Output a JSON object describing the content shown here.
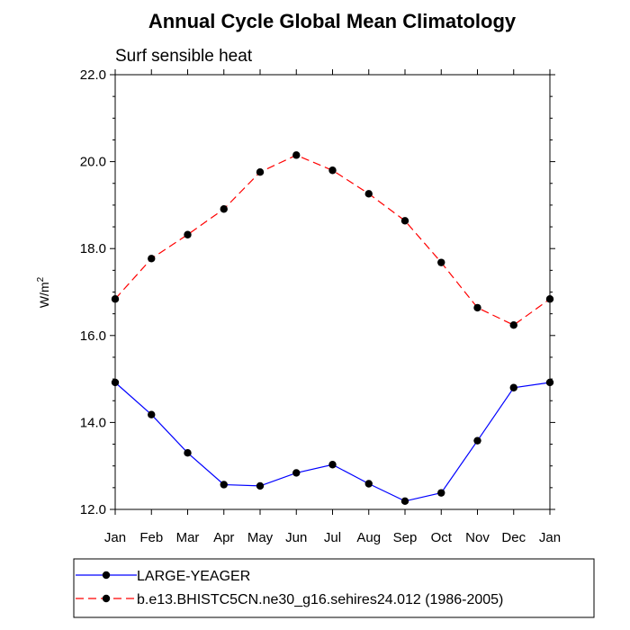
{
  "chart_data": {
    "type": "line",
    "title": "Annual Cycle Global Mean Climatology",
    "subtitle": "Surf sensible heat",
    "xlabel": "",
    "ylabel": "W/m",
    "ylabel_sup": "2",
    "categories": [
      "Jan",
      "Feb",
      "Mar",
      "Apr",
      "May",
      "Jun",
      "Jul",
      "Aug",
      "Sep",
      "Oct",
      "Nov",
      "Dec",
      "Jan"
    ],
    "ylim": [
      12.0,
      22.0
    ],
    "yticks": [
      12.0,
      14.0,
      16.0,
      18.0,
      20.0,
      22.0
    ],
    "ytick_labels": [
      "12.0",
      "14.0",
      "16.0",
      "18.0",
      "20.0",
      "22.0"
    ],
    "grid": false,
    "legend_position": "bottom",
    "series": [
      {
        "name": "LARGE-YEAGER",
        "color": "#0000ff",
        "line_style": "solid",
        "marker": "circle",
        "values": [
          14.92,
          14.18,
          13.3,
          12.57,
          12.54,
          12.84,
          13.03,
          12.59,
          12.19,
          12.38,
          13.58,
          14.8,
          14.92
        ]
      },
      {
        "name": "b.e13.BHISTC5CN.ne30_g16.sehires24.012 (1986-2005)",
        "color": "#ff0000",
        "line_style": "dashed",
        "marker": "circle",
        "values": [
          16.84,
          17.77,
          18.32,
          18.91,
          19.76,
          20.15,
          19.8,
          19.26,
          18.64,
          17.68,
          16.64,
          16.24,
          16.84
        ]
      }
    ]
  }
}
